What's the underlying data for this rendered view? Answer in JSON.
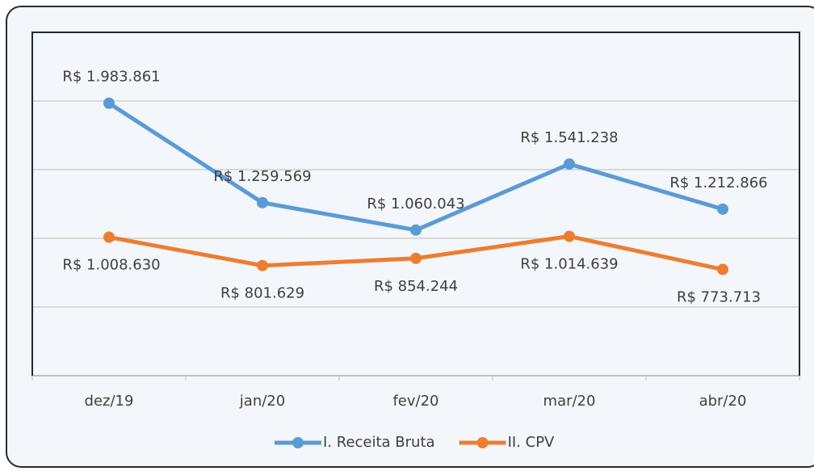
{
  "chart_data": {
    "type": "line",
    "categories": [
      "dez/19",
      "jan/20",
      "fev/20",
      "mar/20",
      "abr/20"
    ],
    "series": [
      {
        "name": "I. Receita Bruta",
        "color": "#5b9bd5",
        "values": [
          1983861,
          1259569,
          1060043,
          1541238,
          1212866
        ],
        "value_labels": [
          "R$ 1.983.861",
          "R$ 1.259.569",
          "R$ 1.060.043",
          "R$ 1.541.238",
          "R$ 1.212.866"
        ]
      },
      {
        "name": "II. CPV",
        "color": "#ed7d31",
        "values": [
          1008630,
          801629,
          854244,
          1014639,
          773713
        ],
        "value_labels": [
          "R$ 1.008.630",
          "R$ 801.629",
          "R$ 854.244",
          "R$ 1.014.639",
          "R$ 773.713"
        ]
      }
    ],
    "ylim": [
      0,
      2500000
    ],
    "yticks": [
      0,
      500000,
      1000000,
      1500000,
      2000000,
      2500000
    ],
    "grid": true,
    "legend": "bottom"
  }
}
